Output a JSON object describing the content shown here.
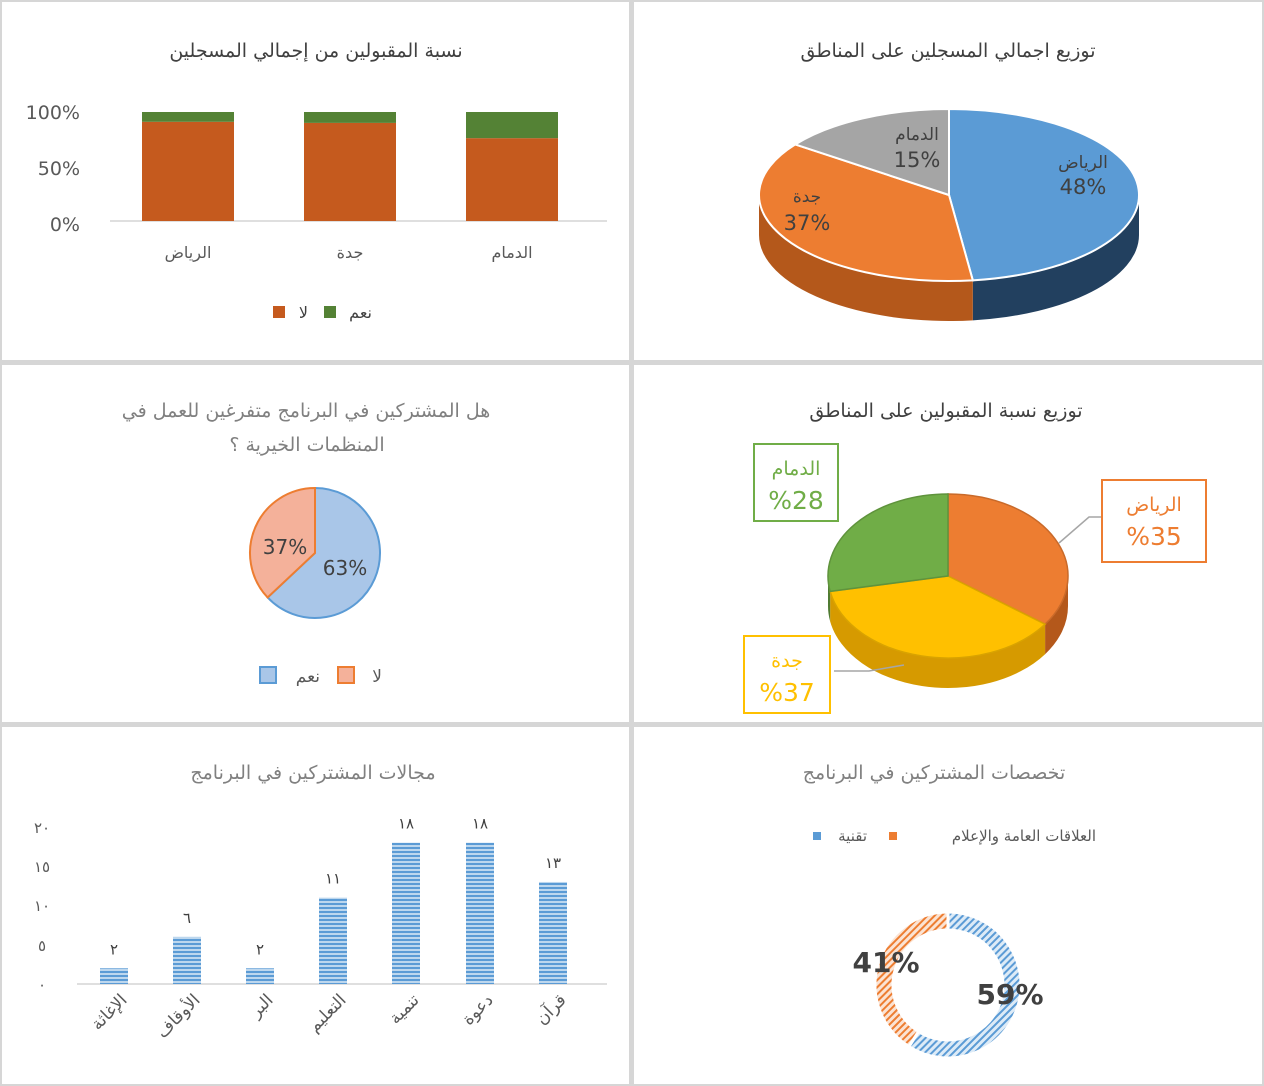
{
  "chart_data": [
    {
      "id": "accepted-ratio",
      "type": "bar",
      "stacked": "percent",
      "title": "نسبة المقبولين من إجمالي المسجلين",
      "categories": [
        "الرياض",
        "جدة",
        "الدمام"
      ],
      "series": [
        {
          "name": "لا",
          "color": "#C55A1E",
          "values": [
            91,
            90,
            76
          ]
        },
        {
          "name": "نعم",
          "color": "#548235",
          "values": [
            9,
            10,
            24
          ]
        }
      ],
      "yticks": [
        "100%",
        "50%",
        "0%"
      ],
      "ylim": [
        0,
        100
      ],
      "legend_position": "bottom",
      "grid": false
    },
    {
      "id": "registered-distribution",
      "type": "pie",
      "title": "توزيع اجمالي المسجلين على المناطق",
      "labels": [
        "الرياض",
        "جدة",
        "الدمام"
      ],
      "values": [
        48,
        37,
        15
      ],
      "value_labels": [
        "48%",
        "37%",
        "15%"
      ],
      "colors": [
        "#5B9BD5",
        "#ED7D31",
        "#A5A5A5"
      ],
      "legend_position": "none"
    },
    {
      "id": "full-time-participants",
      "type": "pie",
      "title": "هل المشتركين في البرنامج متفرغين للعمل في المنظمات الخيرية ؟",
      "title_lines": [
        "هل المشتركين في البرنامج متفرغين للعمل في",
        "المنظمات الخيرية ؟"
      ],
      "labels": [
        "نعم",
        "لا"
      ],
      "values": [
        63,
        37
      ],
      "value_labels": [
        "63%",
        "37%"
      ],
      "colors": [
        "#A9C6E8",
        "#F4B19A"
      ],
      "border_colors": [
        "#5B9BD5",
        "#ED7D31"
      ],
      "legend_position": "bottom"
    },
    {
      "id": "accepted-distribution",
      "type": "pie",
      "title": "توزيع نسبة المقبولين على المناطق",
      "labels": [
        "الرياض",
        "جدة",
        "الدمام"
      ],
      "values": [
        35,
        37,
        28
      ],
      "value_labels": [
        "%35",
        "%37",
        "%28"
      ],
      "colors": [
        "#ED7D31",
        "#FFC000",
        "#70AD47"
      ],
      "legend_position": "none"
    },
    {
      "id": "participant-fields",
      "type": "bar",
      "title": "مجالات المشتركين في البرنامج",
      "categories": [
        "الإغاثة",
        "الأوقاف",
        "البر",
        "التعليم",
        "تنمية",
        "دعوة",
        "قرآن"
      ],
      "values": [
        2,
        6,
        2,
        11,
        18,
        18,
        13
      ],
      "data_labels": [
        "٢",
        "٦",
        "٢",
        "١١",
        "١٨",
        "١٨",
        "١٣"
      ],
      "yticks": [
        "٢٠",
        "١٥",
        "١٠",
        "٥",
        "٠"
      ],
      "ylim": [
        0,
        20
      ],
      "color": "#5B9BD5",
      "grid": false
    },
    {
      "id": "participant-specialties",
      "type": "pie",
      "donut": true,
      "title": "تخصصات المشتركين في البرنامج",
      "labels": [
        "تقنية",
        "العلاقات العامة والإعلام"
      ],
      "values": [
        59,
        41
      ],
      "value_labels": [
        "59%",
        "41%"
      ],
      "colors": [
        "#5B9BD5",
        "#ED7D31"
      ],
      "legend_position": "top"
    }
  ]
}
